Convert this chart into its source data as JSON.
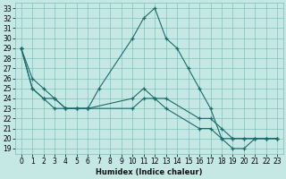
{
  "xlabel": "Humidex (Indice chaleur)",
  "background_color": "#c5e8e5",
  "grid_color": "#7abfba",
  "line_color": "#1a6b6b",
  "xlim": [
    -0.5,
    23.5
  ],
  "ylim": [
    18.5,
    33.5
  ],
  "yticks": [
    19,
    20,
    21,
    22,
    23,
    24,
    25,
    26,
    27,
    28,
    29,
    30,
    31,
    32,
    33
  ],
  "xticks": [
    0,
    1,
    2,
    3,
    4,
    5,
    6,
    7,
    8,
    9,
    10,
    11,
    12,
    13,
    14,
    15,
    16,
    17,
    18,
    19,
    20,
    21,
    22,
    23
  ],
  "lines": [
    {
      "x": [
        0,
        1,
        2,
        3,
        4,
        5,
        6,
        7,
        10,
        11,
        12,
        13,
        14,
        15,
        16,
        17,
        18,
        19,
        20,
        21,
        22,
        23
      ],
      "y": [
        29,
        26,
        25,
        24,
        23,
        23,
        23,
        25,
        30,
        32,
        33,
        30,
        29,
        27,
        25,
        23,
        20,
        19,
        19,
        20,
        20,
        20
      ]
    },
    {
      "x": [
        0,
        1,
        2,
        3,
        4,
        5,
        6,
        10,
        11,
        12,
        13,
        16,
        17,
        18,
        19,
        20,
        21,
        22,
        23
      ],
      "y": [
        29,
        25,
        24,
        24,
        23,
        23,
        23,
        24,
        25,
        24,
        24,
        22,
        22,
        21,
        20,
        20,
        20,
        20,
        20
      ]
    },
    {
      "x": [
        0,
        1,
        2,
        3,
        4,
        5,
        6,
        10,
        11,
        12,
        13,
        16,
        17,
        18,
        19,
        20,
        21,
        22,
        23
      ],
      "y": [
        29,
        25,
        24,
        23,
        23,
        23,
        23,
        23,
        24,
        24,
        23,
        21,
        21,
        20,
        20,
        20,
        20,
        20,
        20
      ]
    }
  ],
  "tick_fontsize": 5.5,
  "xlabel_fontsize": 6,
  "figsize": [
    3.2,
    2.0
  ],
  "dpi": 100
}
